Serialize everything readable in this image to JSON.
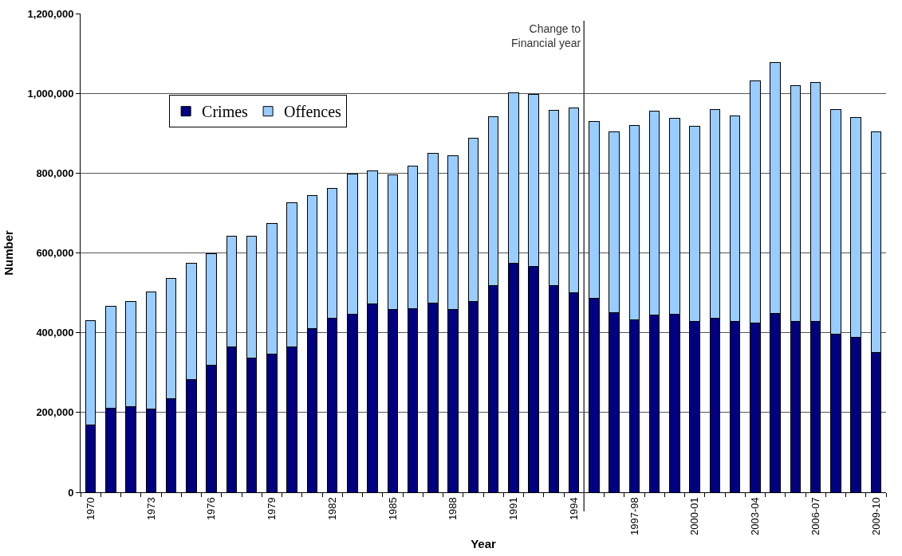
{
  "chart_data": {
    "type": "bar",
    "stacked": true,
    "xlabel": "Year",
    "ylabel": "Number",
    "categories": [
      "1970",
      null,
      null,
      "1973",
      null,
      null,
      "1976",
      null,
      null,
      "1979",
      null,
      null,
      "1982",
      null,
      null,
      "1985",
      null,
      null,
      "1988",
      null,
      null,
      "1991",
      null,
      null,
      "1994",
      null,
      null,
      "1997-98",
      null,
      null,
      "2000-01",
      null,
      null,
      "2003-04",
      null,
      null,
      "2006-07",
      null,
      null,
      "2009-10"
    ],
    "series": [
      {
        "name": "Crimes",
        "color": "#000080",
        "values": [
          168000,
          211000,
          214000,
          208000,
          235000,
          283000,
          319000,
          364000,
          336000,
          347000,
          365000,
          410000,
          436000,
          446000,
          473000,
          458000,
          460000,
          474000,
          458000,
          479000,
          519000,
          574000,
          566000,
          518000,
          500000,
          487000,
          450000,
          432000,
          444000,
          446000,
          428000,
          436000,
          428000,
          425000,
          448000,
          428000,
          429000,
          397000,
          389000,
          350000
        ]
      },
      {
        "name": "Offences",
        "color": "#99ccff",
        "values": [
          262000,
          255000,
          265000,
          295000,
          302000,
          292000,
          280000,
          277000,
          305000,
          326000,
          360000,
          334000,
          326000,
          352000,
          332000,
          338000,
          357000,
          376000,
          385000,
          408000,
          423000,
          427000,
          432000,
          440000,
          464000,
          442000,
          453000,
          487000,
          511000,
          491000,
          489000,
          523000,
          516000,
          606000,
          629000,
          591000,
          599000,
          562000,
          551000,
          554000
        ]
      }
    ],
    "ylim": [
      0,
      1200000
    ],
    "yticks": [
      {
        "value": 0,
        "label": "0"
      },
      {
        "value": 200000,
        "label": "200,000"
      },
      {
        "value": 400000,
        "label": "400,000"
      },
      {
        "value": 600000,
        "label": "600,000"
      },
      {
        "value": 800000,
        "label": "800,000"
      },
      {
        "value": 1000000,
        "label": "1,000,000"
      },
      {
        "value": 1200000,
        "label": "1,200,000"
      }
    ],
    "annotations": [
      "Change to\nFinancial year"
    ],
    "grid": "y",
    "legend": "top left"
  }
}
